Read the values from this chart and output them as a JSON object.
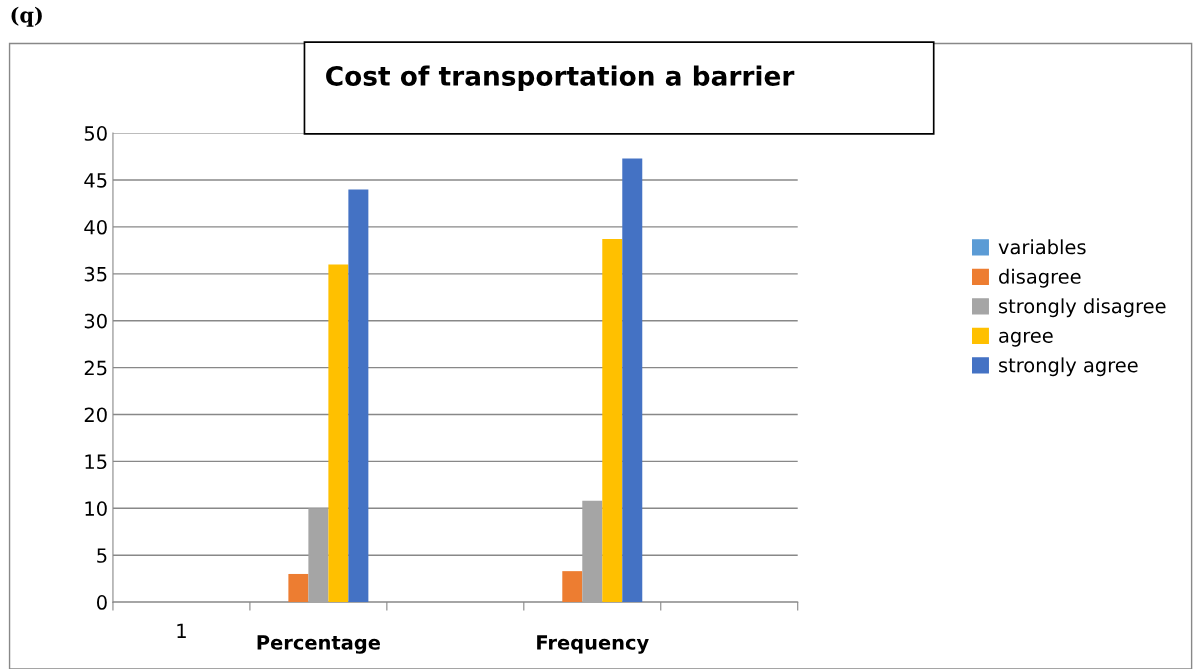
{
  "chart_data": {
    "type": "bar",
    "title": "Cost of transportation a barrier",
    "categories": [
      "1",
      "Percentage",
      null,
      "Frequency",
      null
    ],
    "series": [
      {
        "name": "variables",
        "color": "#5b9bd5",
        "values": [
          null,
          null,
          null,
          null,
          null
        ]
      },
      {
        "name": "disagree",
        "color": "#ed7d31",
        "values": [
          null,
          3,
          null,
          3.3,
          null
        ]
      },
      {
        "name": "strongly disagree",
        "color": "#a5a5a5",
        "values": [
          null,
          10,
          null,
          10.8,
          null
        ]
      },
      {
        "name": "agree",
        "color": "#ffc000",
        "values": [
          null,
          36,
          null,
          38.7,
          null
        ]
      },
      {
        "name": "strongly agree",
        "color": "#4472c4",
        "values": [
          null,
          44,
          null,
          47.3,
          null
        ]
      }
    ],
    "ylim": [
      0,
      50
    ],
    "yticks": [
      0,
      5,
      10,
      15,
      20,
      25,
      30,
      35,
      40,
      45,
      50
    ],
    "grid": "y",
    "legend": "right",
    "annotations": [
      "(q)"
    ]
  }
}
